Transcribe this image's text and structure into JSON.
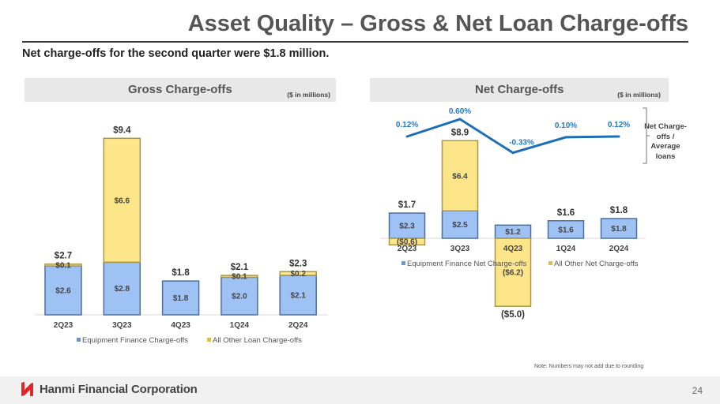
{
  "header": {
    "title": "Asset Quality – Gross & Net Loan Charge-offs",
    "subtitle": "Net charge-offs for the second quarter were $1.8 million."
  },
  "colors": {
    "blue": "#9fc2f5",
    "blue_edge": "#4f6f9a",
    "yellow": "#fde58a",
    "yellow_edge": "#a8964a",
    "line": "#1f6fb5",
    "label": "#444444",
    "line_label": "#1f78c8"
  },
  "footer": {
    "company": "Hanmi Financial Corporation",
    "page": "24",
    "note": "Note: Numbers may not add due to rounding"
  },
  "chart_data": [
    {
      "type": "bar",
      "stacked": true,
      "title": "Gross Charge-offs",
      "units": "($ in millions)",
      "categories": [
        "2Q23",
        "3Q23",
        "4Q23",
        "1Q24",
        "2Q24"
      ],
      "series": [
        {
          "name": "Equipment Finance Charge-offs",
          "values": [
            2.6,
            2.8,
            1.8,
            2.0,
            2.1
          ],
          "labels": [
            "$2.6",
            "$2.8",
            "$1.8",
            "$2.0",
            "$2.1"
          ]
        },
        {
          "name": "All Other Loan Charge-offs",
          "values": [
            0.1,
            6.6,
            0,
            0.1,
            0.2
          ],
          "labels": [
            "$0.1",
            "$6.6",
            "",
            "$0.1",
            "$0.2"
          ]
        }
      ],
      "totals": [
        "$2.7",
        "$9.4",
        "$1.8",
        "$2.1",
        "$2.3"
      ],
      "legend": "bottom"
    },
    {
      "type": "bar+line",
      "stacked": true,
      "title": "Net Charge-offs",
      "units": "($ in millions)",
      "categories": [
        "2Q23",
        "3Q23",
        "4Q23",
        "1Q24",
        "2Q24"
      ],
      "series": [
        {
          "name": "Equipment Finance Net Charge-offs",
          "values": [
            2.3,
            2.5,
            1.2,
            1.6,
            1.8
          ],
          "labels": [
            "$2.3",
            "$2.5",
            "$1.2",
            "$1.6",
            "$1.8"
          ]
        },
        {
          "name": "All Other Net Charge-offs",
          "values": [
            -0.6,
            6.4,
            -6.2,
            0,
            0
          ],
          "labels": [
            "($0.6)",
            "$6.4",
            "($6.2)",
            "",
            ""
          ]
        }
      ],
      "totals": [
        "$1.7",
        "$8.9",
        "($5.0)",
        "$1.6",
        "$1.8"
      ],
      "line": {
        "name": "Net Charge-offs / Average loans",
        "values": [
          0.12,
          0.6,
          -0.33,
          0.1,
          0.12
        ],
        "labels": [
          "0.12%",
          "0.60%",
          "-0.33%",
          "0.10%",
          "0.12%"
        ]
      },
      "ratio_label": [
        "Net Charge-",
        "offs /",
        "Average loans"
      ],
      "legend": "bottom"
    }
  ]
}
